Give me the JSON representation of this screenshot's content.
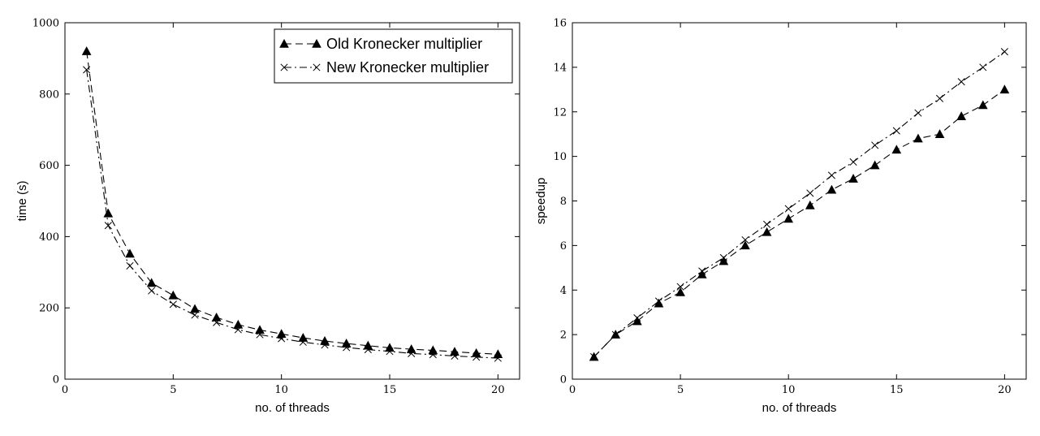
{
  "chart_data": [
    {
      "type": "line",
      "title": "",
      "xlabel": "no. of threads",
      "ylabel": "time (s)",
      "xlim": [
        0,
        21
      ],
      "ylim": [
        0,
        1000
      ],
      "xticks": [
        "0",
        "5",
        "10",
        "15",
        "20"
      ],
      "yticks": [
        "0",
        "200",
        "400",
        "600",
        "800",
        "1000"
      ],
      "grid": false,
      "legend_position": "top-right",
      "x": [
        1,
        2,
        3,
        4,
        5,
        6,
        7,
        8,
        9,
        10,
        11,
        12,
        13,
        14,
        15,
        16,
        17,
        18,
        19,
        20
      ],
      "series": [
        {
          "name": "Old Kronecker multiplier",
          "marker": "triangle",
          "linestyle": "dashed",
          "color": "#000000",
          "values": [
            920,
            465,
            352,
            270,
            235,
            197,
            173,
            153,
            138,
            127,
            116,
            107,
            100,
            94,
            88,
            84,
            81,
            77,
            73,
            70
          ]
        },
        {
          "name": "New Kronecker multiplier",
          "marker": "x",
          "linestyle": "dashdot",
          "color": "#000000",
          "values": [
            868,
            431,
            318,
            248,
            210,
            180,
            159,
            139,
            125,
            114,
            104,
            96,
            89,
            83,
            78,
            72,
            69,
            65,
            62,
            59
          ]
        }
      ]
    },
    {
      "type": "line",
      "title": "",
      "xlabel": "no. of threads",
      "ylabel": "speedup",
      "xlim": [
        0,
        21
      ],
      "ylim": [
        0,
        16
      ],
      "xticks": [
        "0",
        "5",
        "10",
        "15",
        "20"
      ],
      "yticks": [
        "0",
        "2",
        "4",
        "6",
        "8",
        "10",
        "12",
        "14",
        "16"
      ],
      "grid": false,
      "legend_position": "none",
      "x": [
        1,
        2,
        3,
        4,
        5,
        6,
        7,
        8,
        9,
        10,
        11,
        12,
        13,
        14,
        15,
        16,
        17,
        18,
        19,
        20
      ],
      "series": [
        {
          "name": "Old Kronecker multiplier",
          "marker": "triangle",
          "linestyle": "dashed",
          "color": "#000000",
          "values": [
            1.0,
            2.0,
            2.6,
            3.4,
            3.9,
            4.7,
            5.3,
            6.0,
            6.6,
            7.2,
            7.8,
            8.5,
            9.0,
            9.6,
            10.3,
            10.8,
            11.0,
            11.8,
            12.3,
            13.0
          ]
        },
        {
          "name": "New Kronecker multiplier",
          "marker": "x",
          "linestyle": "dashdot",
          "color": "#000000",
          "values": [
            1.0,
            2.0,
            2.75,
            3.5,
            4.15,
            4.85,
            5.45,
            6.25,
            6.95,
            7.65,
            8.35,
            9.15,
            9.75,
            10.5,
            11.15,
            11.95,
            12.6,
            13.35,
            14.0,
            14.7
          ]
        }
      ]
    }
  ]
}
